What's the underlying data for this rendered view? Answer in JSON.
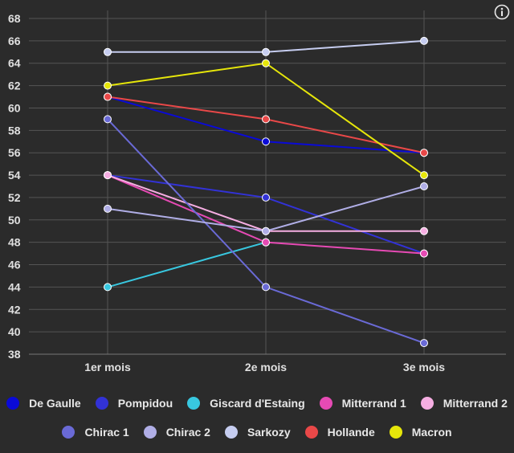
{
  "chart_data": {
    "type": "line",
    "categories": [
      "1er mois",
      "2e mois",
      "3e mois"
    ],
    "ylim": [
      38,
      68
    ],
    "yticks": [
      38,
      40,
      42,
      44,
      46,
      48,
      50,
      52,
      54,
      56,
      58,
      60,
      62,
      64,
      66,
      68
    ],
    "grid": true,
    "legend_position": "bottom",
    "series": [
      {
        "name": "De Gaulle",
        "color": "#0a0ad8",
        "values": [
          61,
          57,
          56
        ]
      },
      {
        "name": "Pompidou",
        "color": "#3232d6",
        "values": [
          54,
          52,
          47
        ]
      },
      {
        "name": "Giscard d'Estaing",
        "color": "#38c8e0",
        "values": [
          44,
          48,
          null
        ]
      },
      {
        "name": "Mitterrand 1",
        "color": "#e64ab4",
        "values": [
          54,
          48,
          47
        ]
      },
      {
        "name": "Mitterrand 2",
        "color": "#f6aee2",
        "values": [
          54,
          49,
          49
        ]
      },
      {
        "name": "Chirac 1",
        "color": "#6a6ad6",
        "values": [
          59,
          44,
          39
        ]
      },
      {
        "name": "Chirac 2",
        "color": "#b0aee6",
        "values": [
          51,
          49,
          53
        ]
      },
      {
        "name": "Sarkozy",
        "color": "#c6cdf0",
        "values": [
          65,
          65,
          66
        ]
      },
      {
        "name": "Hollande",
        "color": "#e94848",
        "values": [
          61,
          59,
          56
        ]
      },
      {
        "name": "Macron",
        "color": "#e6e60a",
        "values": [
          62,
          64,
          54
        ]
      }
    ]
  },
  "legend_rows": [
    [
      "De Gaulle",
      "Pompidou",
      "Giscard d'Estaing",
      "Mitterrand 1",
      "Mitterrand 2"
    ],
    [
      "Chirac 1",
      "Chirac 2",
      "Sarkozy",
      "Hollande",
      "Macron"
    ]
  ],
  "info_icon": "info-icon"
}
